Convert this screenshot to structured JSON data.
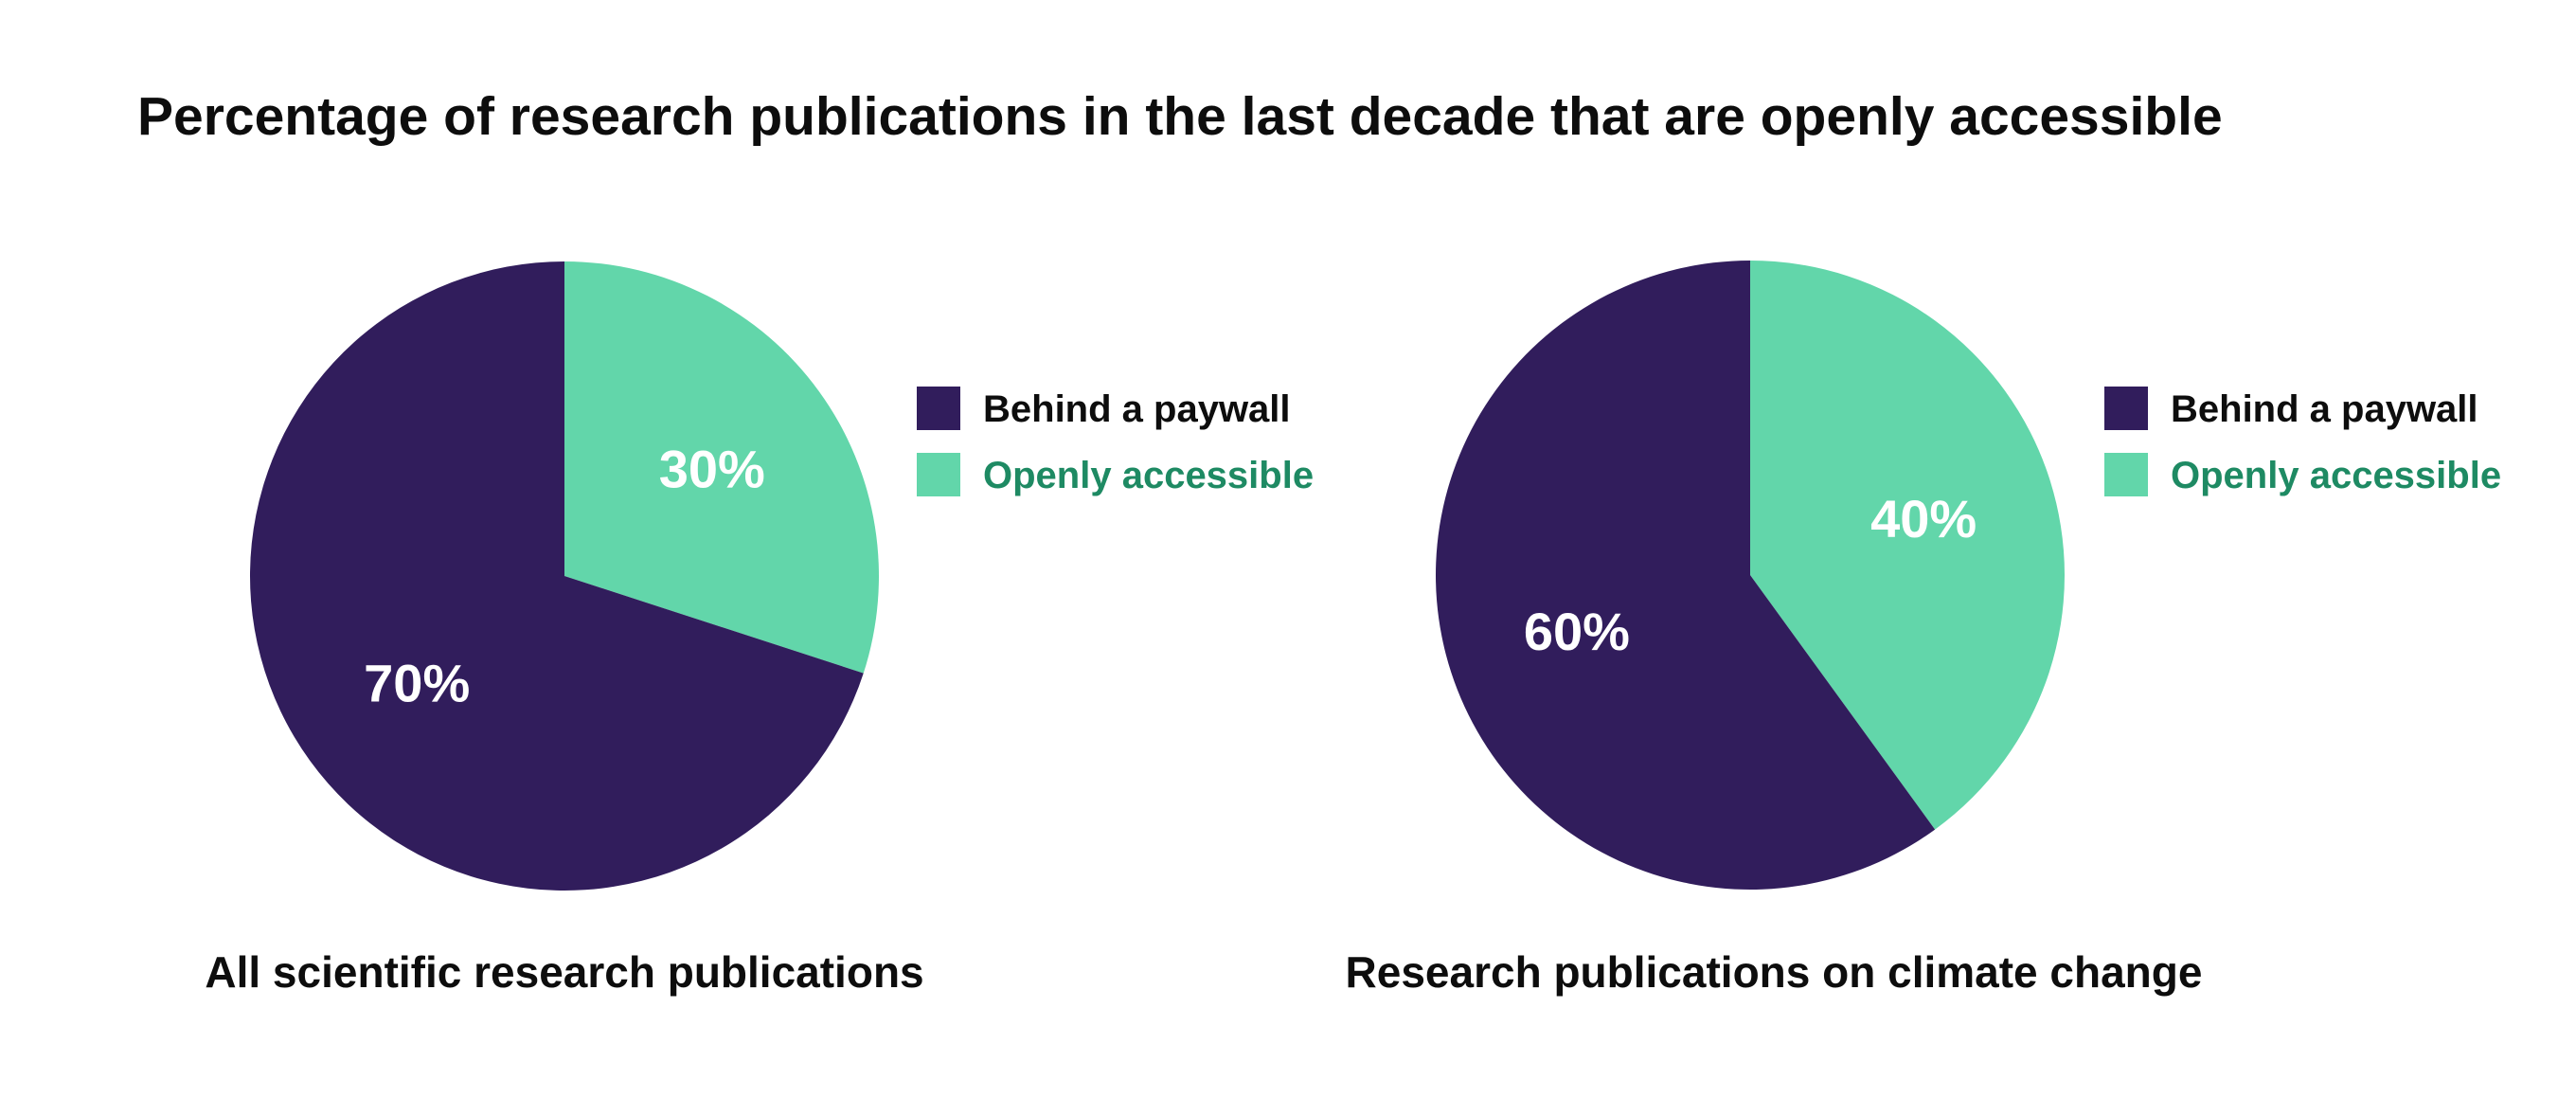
{
  "title": "Percentage of research publications in the last decade that are openly accessible",
  "colors": {
    "paywall": "#311d5c",
    "open": "#62d6aa",
    "open_legend_text": "#1e8a63",
    "paywall_legend_text": "#0d0d0d"
  },
  "chart_data": [
    {
      "type": "pie",
      "caption": "All scientific research publications",
      "slices": [
        {
          "label": "Openly accessible",
          "value": 30,
          "display": "30%",
          "color_key": "open"
        },
        {
          "label": "Behind a paywall",
          "value": 70,
          "display": "70%",
          "color_key": "paywall"
        }
      ],
      "start_angle": "12 o'clock",
      "direction": "clockwise",
      "legend": {
        "placement": "right",
        "entries": [
          {
            "label": "Behind a paywall",
            "color_key": "paywall"
          },
          {
            "label": "Openly accessible",
            "color_key": "open"
          }
        ]
      }
    },
    {
      "type": "pie",
      "caption": "Research publications on climate change",
      "slices": [
        {
          "label": "Openly accessible",
          "value": 40,
          "display": "40%",
          "color_key": "open"
        },
        {
          "label": "Behind a paywall",
          "value": 60,
          "display": "60%",
          "color_key": "paywall"
        }
      ],
      "start_angle": "12 o'clock",
      "direction": "clockwise",
      "legend": {
        "placement": "right",
        "entries": [
          {
            "label": "Behind a paywall",
            "color_key": "paywall"
          },
          {
            "label": "Openly accessible",
            "color_key": "open"
          }
        ]
      }
    }
  ]
}
